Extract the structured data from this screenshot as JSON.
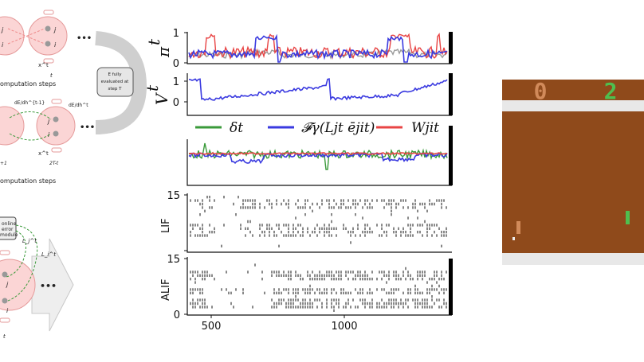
{
  "left_diagram": {
    "top_step_label": "t",
    "top_xt_label": "x^t",
    "top_caption": "omputation steps",
    "eval_box_lines": [
      "E fully",
      "evaluated at",
      "step T"
    ],
    "mid_grad_left": "dE/dh^{t-1}",
    "mid_grad_right": "dE/dh^t",
    "mid_step_left": "+1",
    "mid_step_right": "2T-t",
    "mid_xt_label": "x^t",
    "mid_caption": "omputation steps",
    "online_box_lines": [
      "online",
      "error",
      "module"
    ],
    "learning_signal_a": "L_j^t",
    "learning_signal_b": "L_i^t",
    "bottom_step_label": "t",
    "ellipsis": "•••",
    "node_j": "j",
    "node_i": "i"
  },
  "plots": {
    "pi_label": "π",
    "pi_sup": "t",
    "v_label": "V",
    "v_sup": "t",
    "pi_ticks": [
      "1",
      "0"
    ],
    "v_ticks": [
      "1",
      "0"
    ],
    "legend": [
      {
        "label": "δ",
        "sup": "t",
        "color": "#3a9a3a"
      },
      {
        "label": "𝓕γ(L",
        "sup": "t",
        "tail": "ē",
        "color": "#3a3ae0"
      },
      {
        "label": "W",
        "sup": "t",
        "color": "#e04a4a"
      }
    ],
    "legend_text": [
      "δt",
      "𝓕γ(Ljt ējit)",
      "Wjit"
    ],
    "lif_label": "LIF",
    "alif_label": "ALIF",
    "raster_ticks": [
      "15",
      "0"
    ],
    "x_ticks": [
      "500",
      "1000"
    ],
    "colors": {
      "blue": "#3a3ae0",
      "red": "#e84444",
      "green": "#3a9a3a",
      "gray": "#999999"
    }
  },
  "game": {
    "score_left": "0",
    "score_right": "2",
    "colors": {
      "court": "#8f4a1b",
      "wall": "#e8e8e8",
      "left_paddle": "#d18a5a",
      "right_paddle": "#4fbf4f",
      "ball": "#ececec"
    }
  }
}
